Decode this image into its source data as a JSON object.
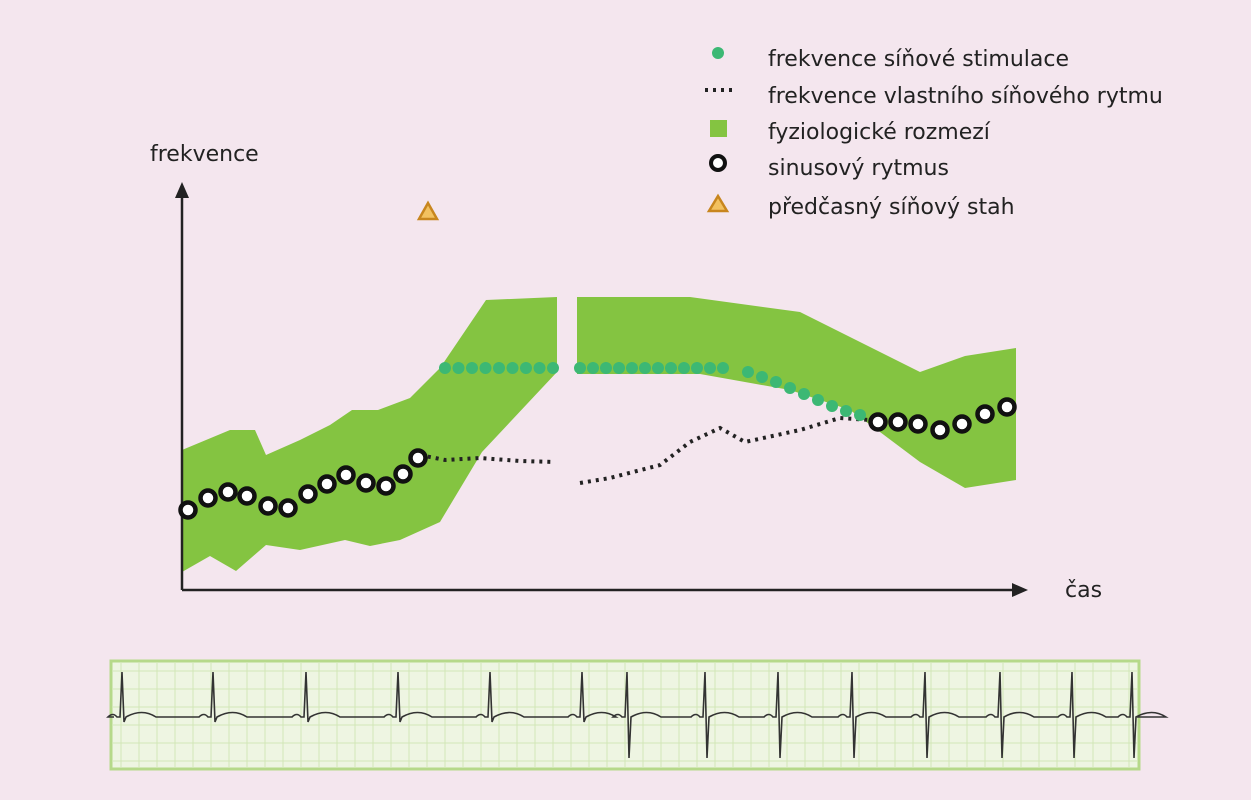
{
  "axes": {
    "y_label": "frekvence",
    "x_label": "čas"
  },
  "legend": {
    "items": [
      {
        "label": "frekvence síňové stimulace"
      },
      {
        "label": "frekvence vlastního síňového rytmu"
      },
      {
        "label": "fyziologické rozmezí"
      },
      {
        "label": "sinusový rytmus"
      },
      {
        "label": "předčasný síňový stah"
      }
    ]
  }
}
